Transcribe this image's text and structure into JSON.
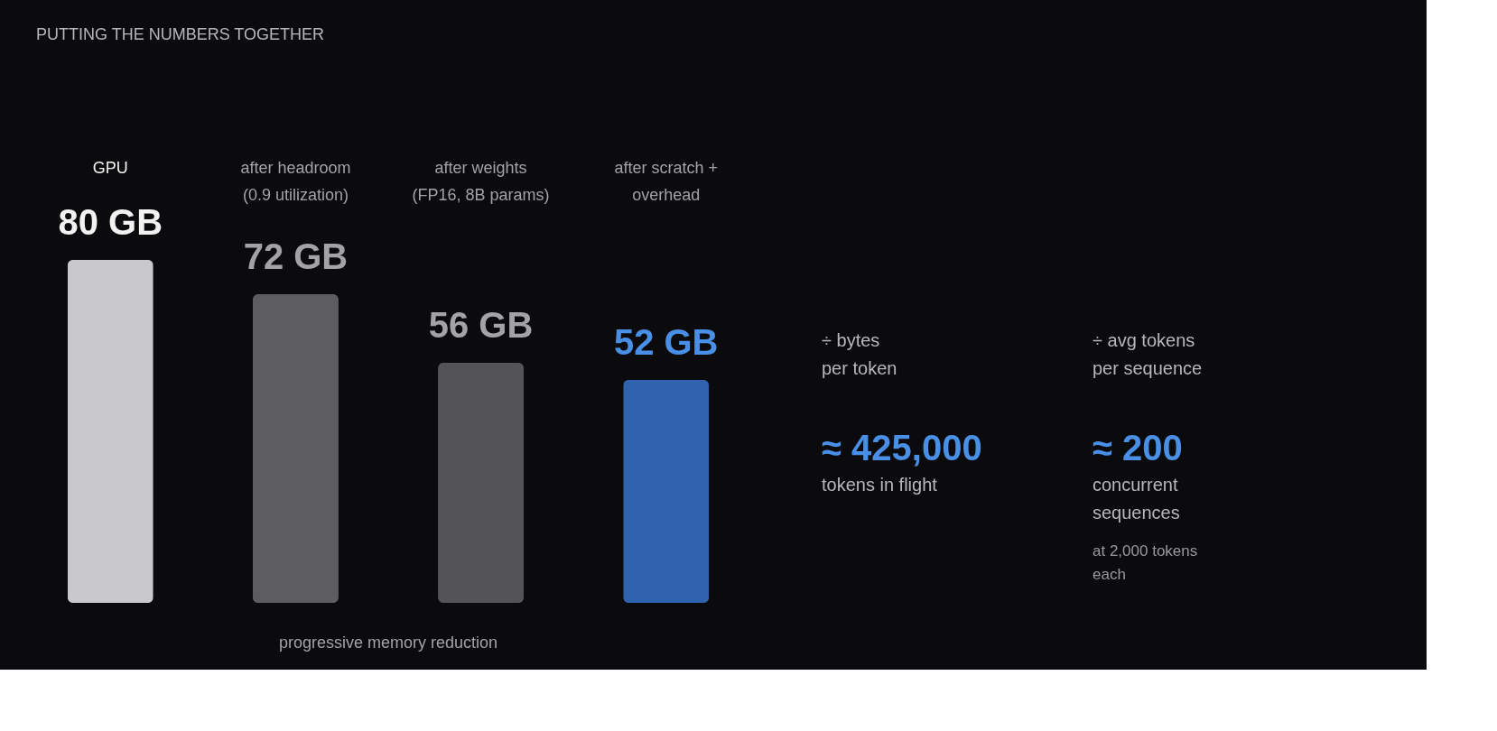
{
  "chart_data": [
    {
      "type": "bar",
      "title": "PUTTING THE NUMBERS TOGETHER",
      "categories": [
        "GPU",
        "after headroom (0.9 utilization)",
        "after weights (FP16, 8B params)",
        "after scratch + overhead"
      ],
      "values": [
        80,
        72,
        56,
        52
      ],
      "value_labels": [
        "80 GB",
        "72 GB",
        "56 GB",
        "52 GB"
      ],
      "colors": [
        "#c9c9cb",
        "#5d5d60",
        "#545457",
        "#2f63ad"
      ],
      "annotations": [
        "progressive memory reduction"
      ]
    },
    {
      "type": "other",
      "annotations": [
        "÷ bytes per token",
        "≈ 425,000",
        "tokens in flight",
        "÷ avg tokens per sequence",
        "≈ 200",
        "concurrent sequences",
        "at 2,000 tokens each"
      ]
    }
  ]
}
